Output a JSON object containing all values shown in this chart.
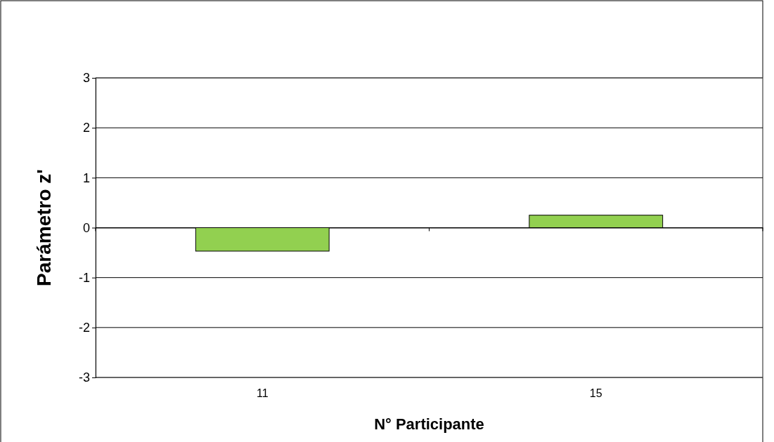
{
  "chart_data": {
    "type": "bar",
    "xlabel": "N° Participante",
    "ylabel": "Parámetro z'",
    "categories": [
      "11",
      "15"
    ],
    "values": [
      -0.47,
      0.25
    ],
    "color": "#92d050",
    "ylim": [
      -3,
      3
    ],
    "yticks": [
      -3,
      -2,
      -1,
      0,
      1,
      2,
      3
    ],
    "grid": "y"
  }
}
